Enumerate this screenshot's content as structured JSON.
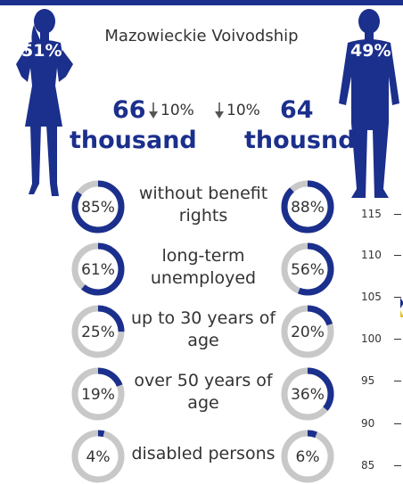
{
  "region_title": "Mazowieckie Voivodship",
  "women": {
    "share": "51%",
    "count": "66",
    "unit": "thousand",
    "change": "10%"
  },
  "men": {
    "share": "49%",
    "count": "64",
    "unit": "thousnd",
    "change": "10%"
  },
  "colors": {
    "accent": "#1b2f8c",
    "ring_track": "#c8c8c8",
    "marker": "#e6c229"
  },
  "categories": [
    {
      "label": "without benefit rights",
      "women_text": "85%",
      "women_value": 85,
      "men_text": "88%",
      "men_value": 88
    },
    {
      "label": "long-term unemployed",
      "women_text": "61%",
      "women_value": 61,
      "men_text": "56%",
      "men_value": 56
    },
    {
      "label": "up to 30 years of age",
      "women_text": "25%",
      "women_value": 25,
      "men_text": "20%",
      "men_value": 20
    },
    {
      "label": "over 50 years of age",
      "women_text": "19%",
      "women_value": 19,
      "men_text": "36%",
      "men_value": 36
    },
    {
      "label": "disabled persons",
      "women_text": "4%",
      "women_value": 4,
      "men_text": "6%",
      "men_value": 6
    }
  ],
  "axis_ticks": [
    "115",
    "110",
    "105",
    "100",
    "95",
    "90",
    "85"
  ]
}
